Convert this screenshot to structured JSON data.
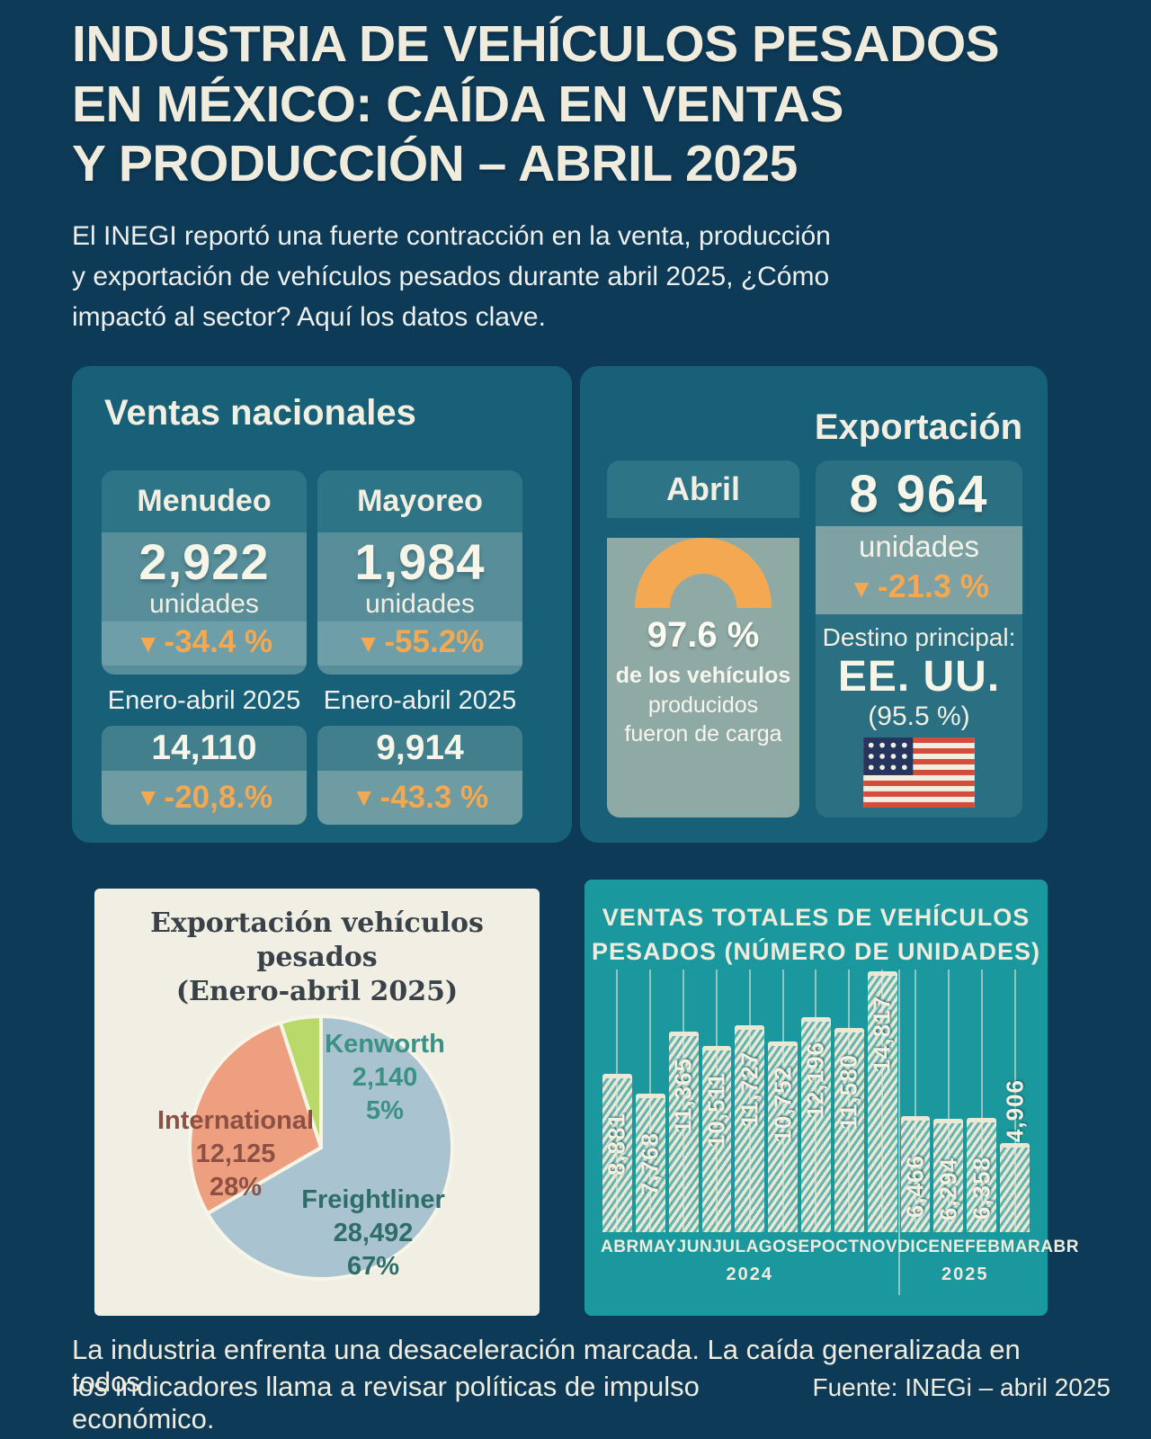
{
  "icons": {
    "down_triangle": "▼"
  },
  "header": {
    "title_lines": [
      "INDUSTRIA DE VEHÍCULOS PESADOS",
      "EN MÉXICO: CAÍDA EN VENTAS",
      "Y PRODUCCIÓN – ABRIL 2025"
    ],
    "intro_lines": [
      "El INEGI reportó una fuerte contracción en la venta, producción",
      "y exportación de vehículos pesados durante abril 2025, ¿Cómo",
      "impactó al sector? Aquí los datos clave."
    ]
  },
  "ventas": {
    "title": "Ventas nacionales",
    "period_label": "Enero-abril 2025",
    "cards": [
      {
        "label": "Menudeo",
        "value": "2,922",
        "unit": "unidades",
        "pct": "-34.4 %",
        "period_value": "14,110",
        "period_pct": "-20,8.%"
      },
      {
        "label": "Mayoreo",
        "value": "1,984",
        "unit": "unidades",
        "pct": "-55.2%",
        "period_value": "9,914",
        "period_pct": "-43.3 %"
      }
    ]
  },
  "exportacion": {
    "title": "Exportación",
    "abril_card": {
      "label": "Abril",
      "gauge_pct": "97.6 %",
      "desc_lines": [
        "de los vehículos",
        "producidos",
        "fueron de carga"
      ]
    },
    "export_card": {
      "value": "8 964",
      "unit": "unidades",
      "pct": "-21.3 %",
      "dest_label": "Destino principal:",
      "dest": "EE. UU.",
      "dest_pct": "(95.5 %)"
    }
  },
  "footer": {
    "lines": [
      "La industria enfrenta una desaceleración marcada. La caída generalizada en todos",
      "los indicadores llama a revisar políticas de impulso económico."
    ],
    "source": "Fuente: INEGi – abril 2025"
  },
  "chart_data": [
    {
      "type": "pie",
      "title": "Exportación vehículos pesados (Enero-abril 2025)",
      "title_lines": [
        "Exportación vehículos",
        "pesados",
        "(Enero-abril 2025)"
      ],
      "series": [
        {
          "name": "Freightliner",
          "value": 28492,
          "label_value": "28,492",
          "pct": "67%",
          "color": "#a9c3d1",
          "label_color": "#2f6e68"
        },
        {
          "name": "International",
          "value": 12125,
          "label_value": "12,125",
          "pct": "28%",
          "color": "#ee9f80",
          "label_color": "#8d5044"
        },
        {
          "name": "Kenworth",
          "value": 2140,
          "label_value": "2,140",
          "pct": "5%",
          "color": "#b9d96b",
          "label_color": "#3b9183"
        }
      ],
      "legend_position": "on-chart",
      "start_angle_deg": 0,
      "direction": "clockwise"
    },
    {
      "type": "bar",
      "title": "VENTAS TOTALES DE VEHÍCULOS PESADOS (NÚMERO DE UNIDADES)",
      "title_lines": [
        "VENTAS TOTALES DE VEHÍCULOS",
        "PESADOS (NÚMERO DE UNIDADES)"
      ],
      "categories": [
        "ABR",
        "MAY",
        "JUN",
        "JUL",
        "AGO",
        "SEP",
        "OCT",
        "NOV",
        "DIC",
        "ENE",
        "FEB",
        "MAR",
        "ABR"
      ],
      "values": [
        8881,
        7768,
        11365,
        10511,
        11727,
        10752,
        12196,
        11580,
        14817,
        6466,
        6294,
        6358,
        4906
      ],
      "value_labels": [
        "8,881",
        "7,768",
        "11,365",
        "10,511",
        "11,727",
        "10,752",
        "12,196",
        "11,580",
        "14,817",
        "6,466",
        "6,294",
        "6,358",
        "4,906"
      ],
      "year_groups": [
        {
          "label": "2024",
          "count": 9
        },
        {
          "label": "2025",
          "count": 4
        }
      ],
      "ylim": [
        0,
        15200
      ],
      "grid": "vertical",
      "bar_color": "#ece8d6",
      "panel_color": "#1b989e"
    }
  ]
}
